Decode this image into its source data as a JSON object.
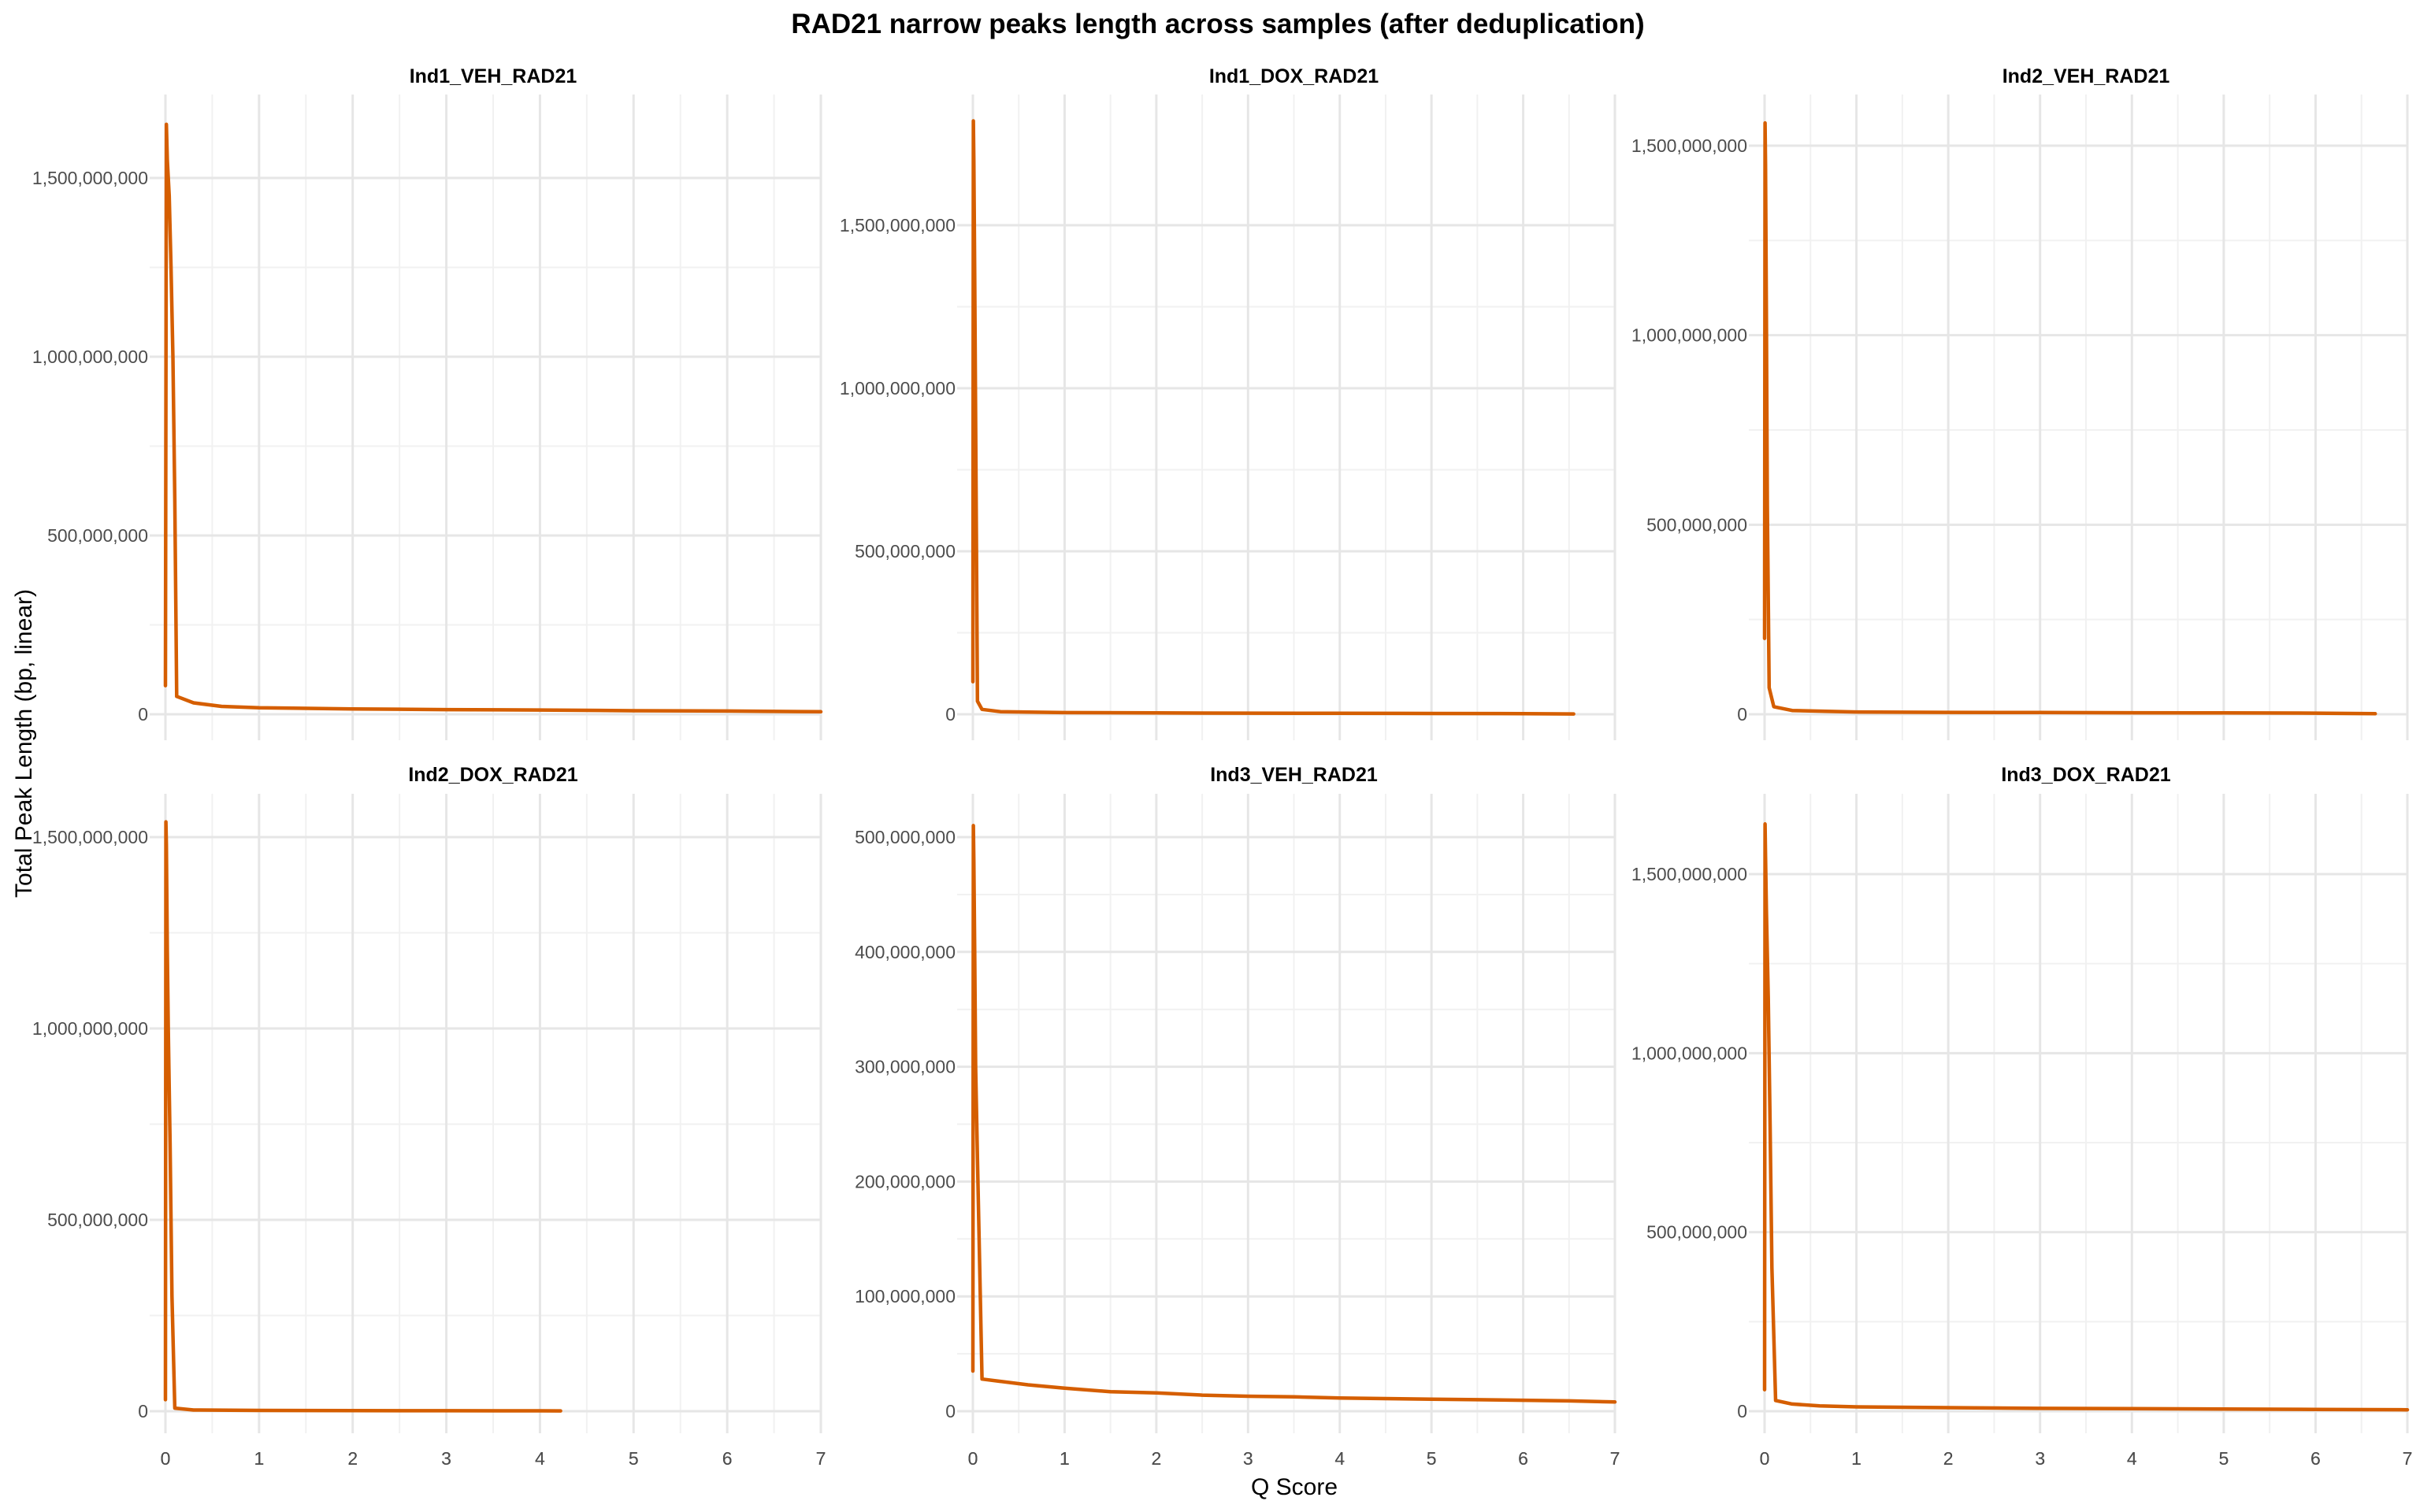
{
  "figure": {
    "title": "RAD21 narrow peaks length across samples (after deduplication)",
    "xlabel": "Q Score",
    "ylabel": "Total Peak Length (bp, linear)",
    "line_color": "#D55E00"
  },
  "chart_data": [
    {
      "type": "line",
      "title": "Ind1_VEH_RAD21",
      "xlim": [
        0,
        7
      ],
      "ylim": [
        0,
        1650000000
      ],
      "xticks": [
        0,
        1,
        2,
        3,
        4,
        5,
        6,
        7
      ],
      "yticks": [
        0,
        500000000,
        1000000000,
        1500000000
      ],
      "x": [
        0,
        0.01,
        0.02,
        0.04,
        0.06,
        0.08,
        0.1,
        0.12,
        0.3,
        0.6,
        1,
        2,
        3,
        4,
        5,
        6,
        7
      ],
      "y": [
        80000000,
        1650000000,
        1550000000,
        1450000000,
        1250000000,
        1000000000,
        600000000,
        50000000,
        32000000,
        22000000,
        18000000,
        15000000,
        13000000,
        12000000,
        10000000,
        9000000,
        7000000
      ]
    },
    {
      "type": "line",
      "title": "Ind1_DOX_RAD21",
      "xlim": [
        0,
        7
      ],
      "ylim": [
        0,
        1820000000
      ],
      "xticks": [
        0,
        1,
        2,
        3,
        4,
        5,
        6,
        7
      ],
      "yticks": [
        0,
        500000000,
        1000000000,
        1500000000
      ],
      "x": [
        0,
        0.005,
        0.01,
        0.02,
        0.03,
        0.05,
        0.1,
        0.3,
        1,
        2,
        3,
        4,
        5,
        6,
        6.55
      ],
      "y": [
        100000000,
        1820000000,
        1700000000,
        1350000000,
        900000000,
        40000000,
        15000000,
        8000000,
        5000000,
        4000000,
        3500000,
        3000000,
        2500000,
        2000000,
        1000000
      ]
    },
    {
      "type": "line",
      "title": "Ind2_VEH_RAD21",
      "xlim": [
        0,
        7
      ],
      "ylim": [
        0,
        1560000000
      ],
      "xticks": [
        0,
        1,
        2,
        3,
        4,
        5,
        6,
        7
      ],
      "yticks": [
        0,
        500000000,
        1000000000,
        1500000000
      ],
      "x": [
        0,
        0.005,
        0.01,
        0.02,
        0.03,
        0.05,
        0.1,
        0.3,
        1,
        2,
        3,
        4,
        5,
        6,
        6.65
      ],
      "y": [
        200000000,
        1560000000,
        1450000000,
        1050000000,
        550000000,
        70000000,
        20000000,
        10000000,
        6000000,
        5000000,
        4500000,
        4000000,
        3500000,
        3000000,
        1500000
      ]
    },
    {
      "type": "line",
      "title": "Ind2_DOX_RAD21",
      "xlim": [
        0,
        7
      ],
      "ylim": [
        0,
        1550000000
      ],
      "xticks": [
        0,
        1,
        2,
        3,
        4,
        5,
        6,
        7
      ],
      "yticks": [
        0,
        500000000,
        1000000000,
        1500000000
      ],
      "x": [
        0,
        0.005,
        0.01,
        0.02,
        0.03,
        0.05,
        0.07,
        0.1,
        0.3,
        1,
        2,
        3,
        4,
        4.22
      ],
      "y": [
        30000000,
        1540000000,
        1480000000,
        1200000000,
        1000000000,
        700000000,
        300000000,
        8000000,
        3000000,
        2000000,
        1500000,
        1200000,
        1000000,
        800000
      ]
    },
    {
      "type": "line",
      "title": "Ind3_VEH_RAD21",
      "xlim": [
        0,
        7
      ],
      "ylim": [
        0,
        515000000
      ],
      "xticks": [
        0,
        1,
        2,
        3,
        4,
        5,
        6,
        7
      ],
      "yticks": [
        0,
        100000000,
        200000000,
        300000000,
        400000000,
        500000000
      ],
      "x": [
        0,
        0.005,
        0.01,
        0.02,
        0.03,
        0.05,
        0.1,
        0.3,
        0.6,
        1,
        1.5,
        2,
        2.5,
        3,
        3.5,
        4,
        4.5,
        5,
        5.5,
        6,
        6.5,
        7
      ],
      "y": [
        35000000,
        510000000,
        480000000,
        400000000,
        300000000,
        220000000,
        28000000,
        26000000,
        23000000,
        20000000,
        17000000,
        16000000,
        14000000,
        13000000,
        12500000,
        11500000,
        11000000,
        10500000,
        10000000,
        9500000,
        9000000,
        8000000
      ]
    },
    {
      "type": "line",
      "title": "Ind3_DOX_RAD21",
      "xlim": [
        0,
        7
      ],
      "ylim": [
        0,
        1650000000
      ],
      "xticks": [
        0,
        1,
        2,
        3,
        4,
        5,
        6,
        7
      ],
      "yticks": [
        0,
        500000000,
        1000000000,
        1500000000
      ],
      "x": [
        0,
        0.005,
        0.01,
        0.02,
        0.04,
        0.06,
        0.08,
        0.12,
        0.3,
        0.6,
        1,
        2,
        3,
        4,
        5,
        6,
        7
      ],
      "y": [
        60000000,
        1640000000,
        1550000000,
        1400000000,
        1150000000,
        800000000,
        400000000,
        30000000,
        20000000,
        15000000,
        12000000,
        10000000,
        8000000,
        7000000,
        6000000,
        5000000,
        4000000
      ]
    }
  ]
}
